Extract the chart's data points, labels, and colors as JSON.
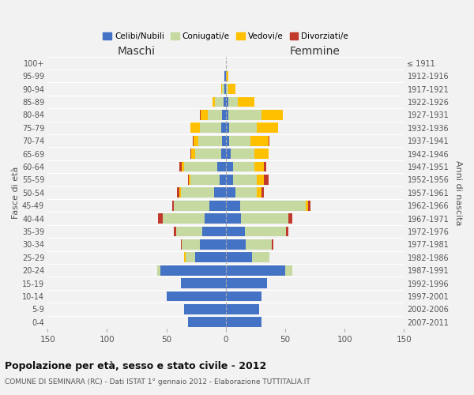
{
  "age_groups": [
    "0-4",
    "5-9",
    "10-14",
    "15-19",
    "20-24",
    "25-29",
    "30-34",
    "35-39",
    "40-44",
    "45-49",
    "50-54",
    "55-59",
    "60-64",
    "65-69",
    "70-74",
    "75-79",
    "80-84",
    "85-89",
    "90-94",
    "95-99",
    "100+"
  ],
  "birth_years": [
    "2007-2011",
    "2002-2006",
    "1997-2001",
    "1992-1996",
    "1987-1991",
    "1982-1986",
    "1977-1981",
    "1972-1976",
    "1967-1971",
    "1962-1966",
    "1957-1961",
    "1952-1956",
    "1947-1951",
    "1942-1946",
    "1937-1941",
    "1932-1936",
    "1927-1931",
    "1922-1926",
    "1917-1921",
    "1912-1916",
    "≤ 1911"
  ],
  "maschi": {
    "celibe": [
      32,
      35,
      50,
      38,
      55,
      26,
      22,
      20,
      18,
      14,
      10,
      5,
      7,
      4,
      3,
      4,
      3,
      2,
      1,
      1,
      0
    ],
    "coniugato": [
      0,
      0,
      0,
      0,
      3,
      8,
      15,
      22,
      35,
      30,
      28,
      25,
      28,
      22,
      20,
      18,
      12,
      7,
      2,
      0,
      0
    ],
    "vedovo": [
      0,
      0,
      0,
      0,
      0,
      1,
      0,
      0,
      0,
      0,
      1,
      1,
      2,
      3,
      4,
      8,
      6,
      2,
      1,
      0,
      0
    ],
    "divorziato": [
      0,
      0,
      0,
      0,
      0,
      0,
      1,
      2,
      4,
      1,
      2,
      1,
      2,
      1,
      1,
      0,
      1,
      0,
      0,
      0,
      0
    ]
  },
  "femmine": {
    "nubile": [
      30,
      28,
      30,
      35,
      50,
      22,
      17,
      16,
      13,
      12,
      8,
      6,
      6,
      4,
      3,
      3,
      2,
      2,
      0,
      0,
      0
    ],
    "coniugata": [
      0,
      0,
      0,
      0,
      6,
      15,
      22,
      35,
      40,
      55,
      18,
      20,
      18,
      20,
      18,
      23,
      28,
      8,
      2,
      0,
      0
    ],
    "vedova": [
      0,
      0,
      0,
      0,
      0,
      0,
      0,
      0,
      0,
      2,
      4,
      6,
      8,
      12,
      15,
      18,
      18,
      14,
      6,
      2,
      0
    ],
    "divorziata": [
      0,
      0,
      0,
      0,
      0,
      0,
      1,
      2,
      3,
      2,
      2,
      4,
      2,
      0,
      1,
      0,
      0,
      0,
      0,
      0,
      0
    ]
  },
  "color_celibe": "#4472c4",
  "color_coniugato": "#c5d9a0",
  "color_vedovo": "#ffc000",
  "color_divorziato": "#c0392b",
  "title_main": "Popolazione per età, sesso e stato civile - 2012",
  "title_sub": "COMUNE DI SEMINARA (RC) - Dati ISTAT 1° gennaio 2012 - Elaborazione TUTTITALIA.IT",
  "xlim": 150,
  "background_color": "#f2f2f2",
  "grid_color": "#ffffff"
}
